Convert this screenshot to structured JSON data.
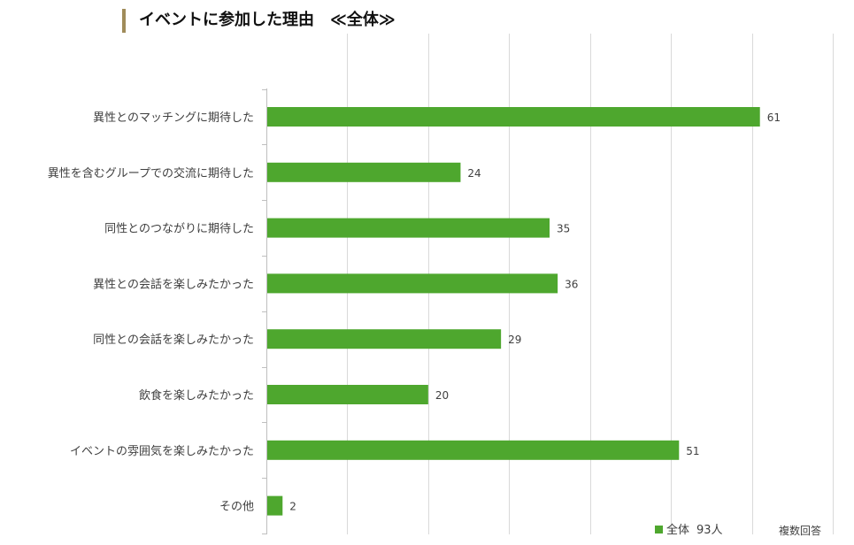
{
  "colors": {
    "bar": "#4ea72e",
    "accent": "#a08c5a",
    "grid": "#d9d9d9",
    "axis": "#bfbfbf"
  },
  "chart_data": {
    "type": "bar",
    "orientation": "horizontal",
    "title": "イベントに参加した理由　≪全体≫",
    "categories": [
      "異性とのマッチングに期待した",
      "異性を含むグループでの交流に期待した",
      "同性とのつながりに期待した",
      "異性との会話を楽しみたかった",
      "同性との会話を楽しみたかった",
      "飲食を楽しみたかった",
      "イベントの雰囲気を楽しみたかった",
      "その他"
    ],
    "values": [
      61,
      24,
      35,
      36,
      29,
      20,
      51,
      2
    ],
    "xlim": [
      0,
      70
    ],
    "grid": true,
    "legend": {
      "label": "全体",
      "base": "93人",
      "position": "bottom-right"
    },
    "note": "複数回答"
  }
}
